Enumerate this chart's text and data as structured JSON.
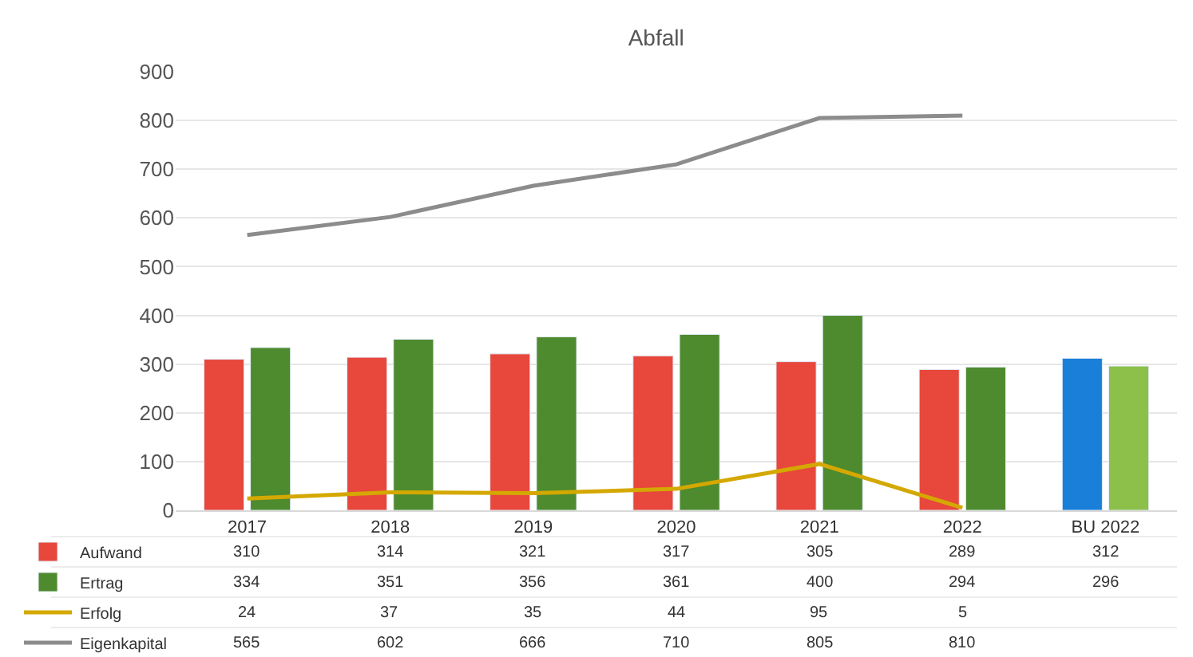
{
  "chart_data": {
    "type": "bar",
    "title": "Abfall",
    "categories": [
      "2017",
      "2018",
      "2019",
      "2020",
      "2021",
      "2022",
      "BU 2022"
    ],
    "series": [
      {
        "name": "Aufwand",
        "colors": [
          "#e8473c",
          "#e8473c",
          "#e8473c",
          "#e8473c",
          "#e8473c",
          "#e8473c",
          "#1a7fd9"
        ],
        "values": [
          310,
          314,
          321,
          317,
          305,
          289,
          312
        ]
      },
      {
        "name": "Ertrag",
        "colors": [
          "#4e8a2e",
          "#4e8a2e",
          "#4e8a2e",
          "#4e8a2e",
          "#4e8a2e",
          "#4e8a2e",
          "#8cc04a"
        ],
        "values": [
          334,
          351,
          356,
          361,
          400,
          294,
          296
        ]
      },
      {
        "name": "Erfolg",
        "type": "line",
        "color": "#d4a800",
        "values": [
          24,
          37,
          35,
          44,
          95,
          5,
          null
        ]
      },
      {
        "name": "Eigenkapital",
        "type": "line",
        "color": "#8c8c8c",
        "values": [
          565,
          602,
          666,
          710,
          805,
          810,
          null
        ]
      }
    ],
    "ylim": [
      0,
      900
    ],
    "yticks": [
      0,
      100,
      200,
      300,
      400,
      500,
      600,
      700,
      800,
      900
    ],
    "grid": "y",
    "legend": "bottom",
    "data_labels": true
  }
}
